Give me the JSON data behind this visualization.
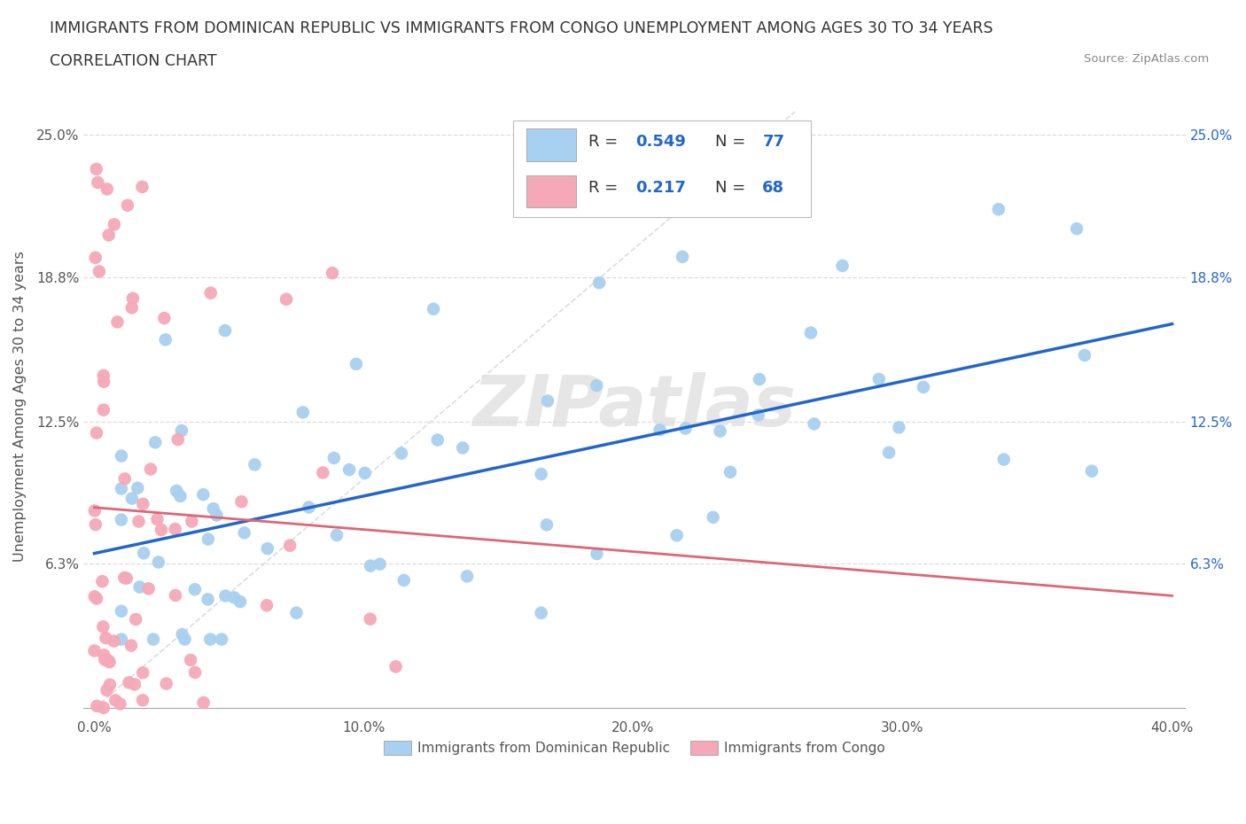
{
  "title_line1": "IMMIGRANTS FROM DOMINICAN REPUBLIC VS IMMIGRANTS FROM CONGO UNEMPLOYMENT AMONG AGES 30 TO 34 YEARS",
  "title_line2": "CORRELATION CHART",
  "source": "Source: ZipAtlas.com",
  "ylabel": "Unemployment Among Ages 30 to 34 years",
  "xlim": [
    0.0,
    0.4
  ],
  "ylim": [
    0.0,
    0.265
  ],
  "xtick_vals": [
    0.0,
    0.1,
    0.2,
    0.3,
    0.4
  ],
  "xtick_labels": [
    "0.0%",
    "10.0%",
    "20.0%",
    "30.0%",
    "40.0%"
  ],
  "ytick_vals": [
    0.0,
    0.063,
    0.125,
    0.188,
    0.25
  ],
  "ytick_labels_left": [
    "",
    "6.3%",
    "12.5%",
    "18.8%",
    "25.0%"
  ],
  "ytick_labels_right": [
    "",
    "6.3%",
    "12.5%",
    "18.8%",
    "25.0%"
  ],
  "legend_R1": "0.549",
  "legend_N1": "77",
  "legend_R2": "0.217",
  "legend_N2": "68",
  "blue_color": "#a8d0f0",
  "pink_color": "#f5a8b8",
  "blue_line_color": "#2266cc",
  "pink_line_color": "#dd6677",
  "ref_line_color": "#dddddd",
  "watermark": "ZIPatlas",
  "grid_color": "#dddddd"
}
